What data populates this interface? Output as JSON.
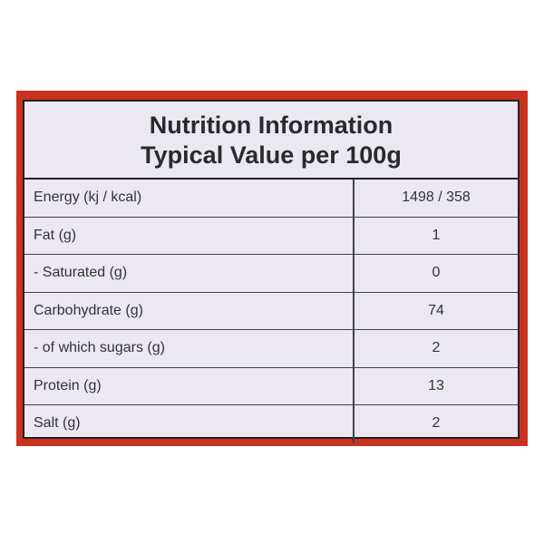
{
  "header": {
    "title": "Nutrition Information",
    "subtitle": "Typical Value per 100g"
  },
  "table": {
    "rows": [
      [
        "Energy (kj / kcal)",
        "1498 / 358"
      ],
      [
        "Fat (g)",
        "1"
      ],
      [
        "- Saturated (g)",
        "0"
      ],
      [
        "Carbohydrate (g)",
        "74"
      ],
      [
        "- of which sugars (g)",
        "2"
      ],
      [
        "Protein (g)",
        "13"
      ],
      [
        "Salt (g)",
        "2"
      ]
    ]
  }
}
